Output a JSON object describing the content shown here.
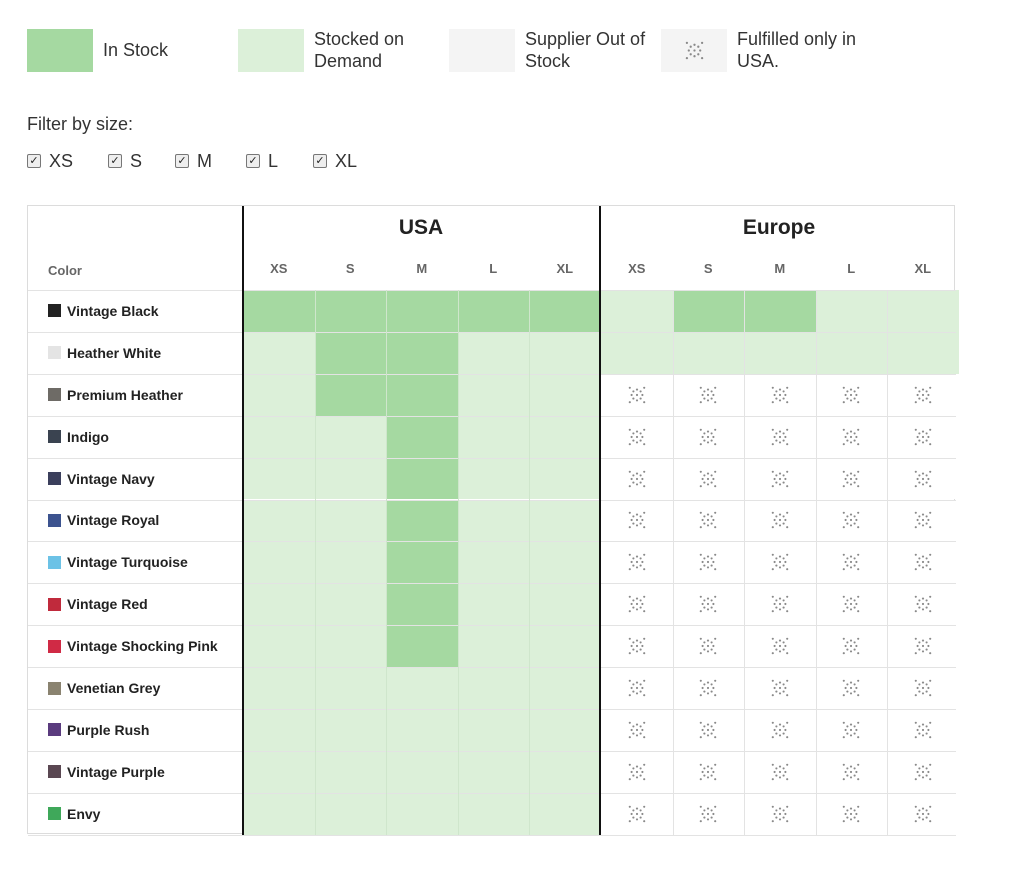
{
  "legend": [
    {
      "label": "In Stock",
      "status": "in_stock",
      "color": "#a5d9a1"
    },
    {
      "label": "Stocked on Demand",
      "status": "on_demand",
      "color": "#dcf0d9"
    },
    {
      "label": "Supplier Out of Stock",
      "status": "out_of_stock",
      "color": "#f4f4f4"
    },
    {
      "label": "Fulfilled only in USA.",
      "status": "usa_only",
      "icon": "cross-pattern-icon"
    }
  ],
  "filter": {
    "title": "Filter by size:",
    "sizes": [
      {
        "label": "XS",
        "checked": true
      },
      {
        "label": "S",
        "checked": true
      },
      {
        "label": "M",
        "checked": true
      },
      {
        "label": "L",
        "checked": true
      },
      {
        "label": "XL",
        "checked": true
      }
    ]
  },
  "table": {
    "color_header": "Color",
    "regions": [
      {
        "name": "USA",
        "sizes": [
          "XS",
          "S",
          "M",
          "L",
          "XL"
        ]
      },
      {
        "name": "Europe",
        "sizes": [
          "XS",
          "S",
          "M",
          "L",
          "XL"
        ]
      }
    ],
    "rows": [
      {
        "name": "Vintage Black",
        "swatch": "#222222",
        "usa": [
          "in",
          "in",
          "in",
          "in",
          "in"
        ],
        "europe": [
          "demand",
          "in",
          "in",
          "demand",
          "demand"
        ]
      },
      {
        "name": "Heather White",
        "swatch": "#e4e4e4",
        "usa": [
          "demand",
          "in",
          "in",
          "demand",
          "demand"
        ],
        "europe": [
          "demand",
          "demand",
          "demand",
          "demand",
          "demand"
        ]
      },
      {
        "name": "Premium Heather",
        "swatch": "#6e6b66",
        "usa": [
          "demand",
          "in",
          "in",
          "demand",
          "demand"
        ],
        "europe": [
          "usa",
          "usa",
          "usa",
          "usa",
          "usa"
        ]
      },
      {
        "name": "Indigo",
        "swatch": "#3a4350",
        "usa": [
          "demand",
          "demand",
          "in",
          "demand",
          "demand"
        ],
        "europe": [
          "usa",
          "usa",
          "usa",
          "usa",
          "usa"
        ]
      },
      {
        "name": "Vintage Navy",
        "swatch": "#3b3f5c",
        "usa": [
          "demand",
          "demand",
          "in",
          "demand",
          "demand"
        ],
        "europe": [
          "usa",
          "usa",
          "usa",
          "usa",
          "usa"
        ]
      },
      {
        "name": "Vintage Royal",
        "swatch": "#3c538f",
        "usa": [
          "demand",
          "demand",
          "in",
          "demand",
          "demand"
        ],
        "europe": [
          "usa",
          "usa",
          "usa",
          "usa",
          "usa"
        ]
      },
      {
        "name": "Vintage Turquoise",
        "swatch": "#6cc2e6",
        "usa": [
          "demand",
          "demand",
          "in",
          "demand",
          "demand"
        ],
        "europe": [
          "usa",
          "usa",
          "usa",
          "usa",
          "usa"
        ]
      },
      {
        "name": "Vintage Red",
        "swatch": "#c02a3c",
        "usa": [
          "demand",
          "demand",
          "in",
          "demand",
          "demand"
        ],
        "europe": [
          "usa",
          "usa",
          "usa",
          "usa",
          "usa"
        ]
      },
      {
        "name": "Vintage Shocking Pink",
        "swatch": "#d02a45",
        "usa": [
          "demand",
          "demand",
          "in",
          "demand",
          "demand"
        ],
        "europe": [
          "usa",
          "usa",
          "usa",
          "usa",
          "usa"
        ]
      },
      {
        "name": "Venetian Grey",
        "swatch": "#8a8370",
        "usa": [
          "demand",
          "demand",
          "demand",
          "demand",
          "demand"
        ],
        "europe": [
          "usa",
          "usa",
          "usa",
          "usa",
          "usa"
        ]
      },
      {
        "name": "Purple Rush",
        "swatch": "#5a3b7e",
        "usa": [
          "demand",
          "demand",
          "demand",
          "demand",
          "demand"
        ],
        "europe": [
          "usa",
          "usa",
          "usa",
          "usa",
          "usa"
        ]
      },
      {
        "name": "Vintage Purple",
        "swatch": "#5a4752",
        "usa": [
          "demand",
          "demand",
          "demand",
          "demand",
          "demand"
        ],
        "europe": [
          "usa",
          "usa",
          "usa",
          "usa",
          "usa"
        ]
      },
      {
        "name": "Envy",
        "swatch": "#3fa85a",
        "usa": [
          "demand",
          "demand",
          "demand",
          "demand",
          "demand"
        ],
        "europe": [
          "usa",
          "usa",
          "usa",
          "usa",
          "usa"
        ]
      }
    ]
  },
  "colors": {
    "in": "#a5d9a1",
    "demand": "#dcf0d9",
    "out": "#f4f4f4",
    "usa": "#ffffff"
  }
}
